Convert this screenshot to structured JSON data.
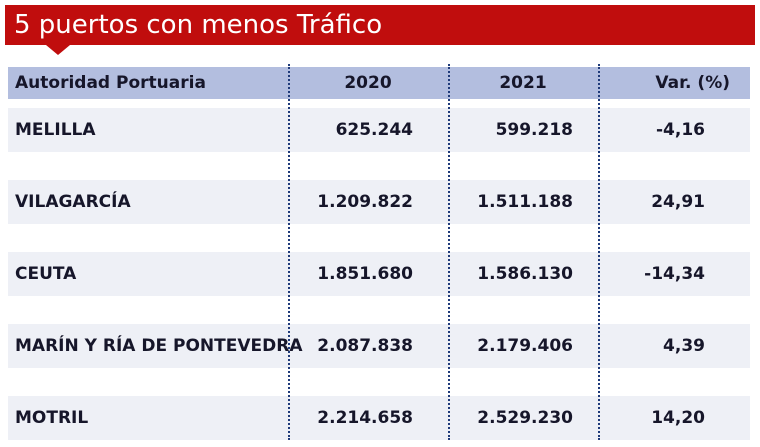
{
  "header": {
    "title": "5 puertos con menos Tráfico"
  },
  "table": {
    "columns": [
      "Autoridad Portuaria",
      "2020",
      "2021",
      "Var. (%)"
    ],
    "rows": [
      [
        "MELILLA",
        "625.244",
        "599.218",
        "-4,16"
      ],
      [
        "VILAGARCÍA",
        "1.209.822",
        "1.511.188",
        "24,91"
      ],
      [
        "CEUTA",
        "1.851.680",
        "1.586.130",
        "-14,34"
      ],
      [
        "MARÍN Y RÍA DE PONTEVEDRA",
        "2.087.838",
        "2.179.406",
        "4,39"
      ],
      [
        "MOTRIL",
        "2.214.658",
        "2.529.230",
        "14,20"
      ]
    ]
  }
}
